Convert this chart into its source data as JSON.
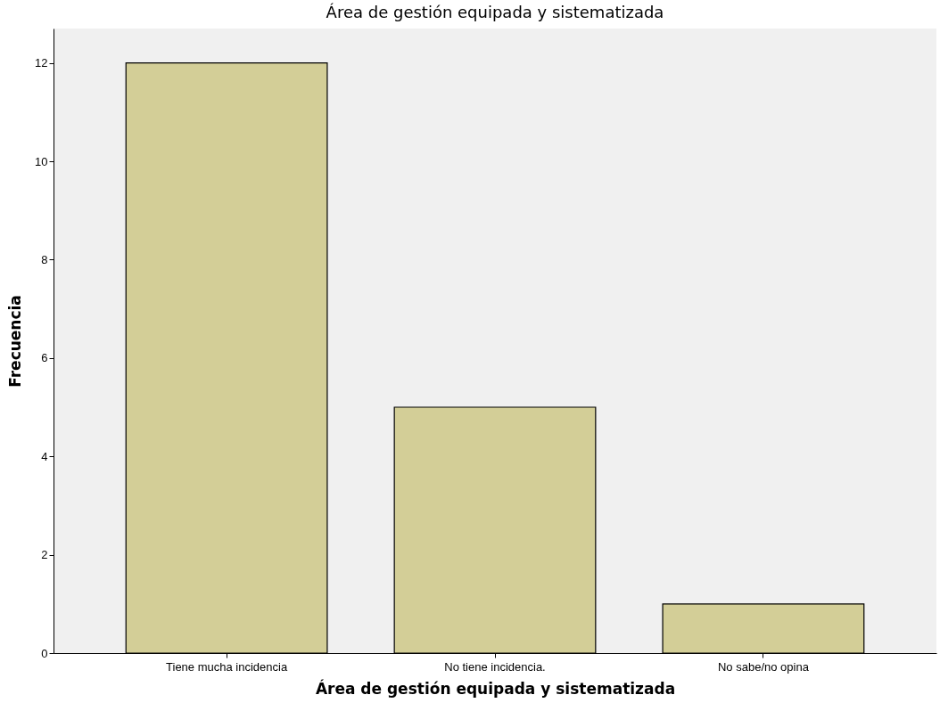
{
  "chart_data": {
    "type": "bar",
    "title": "Área de gestión equipada y sistematizada",
    "xlabel": "Área de gestión equipada y sistematizada",
    "ylabel": "Frecuencia",
    "categories": [
      "Tiene mucha incidencia",
      "No tiene incidencia.",
      "No sabe/no opina"
    ],
    "values": [
      12,
      5,
      1
    ],
    "color": "#d3ce97",
    "ylim": [
      0,
      12.7
    ],
    "yticks": [
      0,
      2,
      4,
      6,
      8,
      10,
      12
    ],
    "grid": false
  }
}
